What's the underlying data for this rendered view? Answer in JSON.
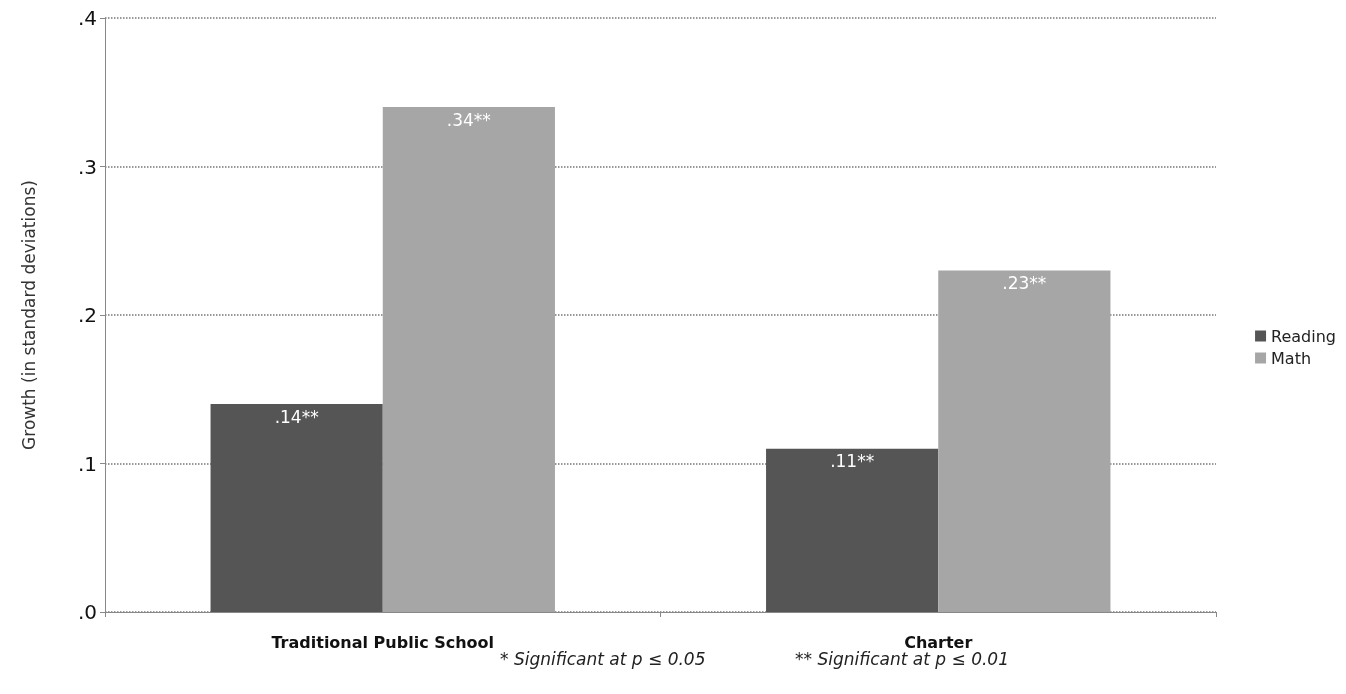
{
  "chart_data": {
    "type": "bar",
    "ylabel": "Growth (in standard deviations)",
    "categories": [
      "Traditional Public School",
      "Charter"
    ],
    "series": [
      {
        "name": "Reading",
        "color": "#555555",
        "values": [
          0.14,
          0.11
        ],
        "value_labels": [
          ".14**",
          ".11**"
        ]
      },
      {
        "name": "Math",
        "color": "#a6a6a6",
        "values": [
          0.34,
          0.23
        ],
        "value_labels": [
          ".34**",
          ".23**"
        ]
      }
    ],
    "ylim": [
      0,
      0.4
    ],
    "yticks": [
      {
        "value": 0,
        "label": ".0"
      },
      {
        "value": 0.1,
        "label": ".1"
      },
      {
        "value": 0.2,
        "label": ".2"
      },
      {
        "value": 0.3,
        "label": ".3"
      },
      {
        "value": 0.4,
        "label": ".4"
      }
    ],
    "grid": "y",
    "legend": "right",
    "annotations": [
      "* Significant at p ≤ 0.05",
      "** Significant at p ≤ 0.01"
    ]
  }
}
